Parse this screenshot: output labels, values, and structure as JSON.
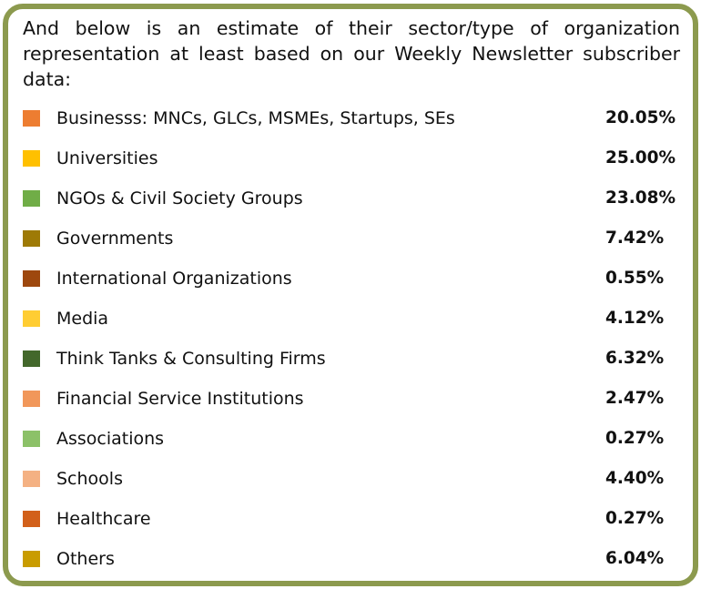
{
  "intro_text": "And below is an estimate of their sector/type of organization representation at least based on our Weekly Newsletter subscriber data:",
  "items": [
    {
      "label": "Businesss: MNCs, GLCs, MSMEs, Startups, SEs",
      "percent": "20.05%",
      "color": "#ed7d31"
    },
    {
      "label": "Universities",
      "percent": "25.00%",
      "color": "#ffc000"
    },
    {
      "label": "NGOs & Civil Society Groups",
      "percent": "23.08%",
      "color": "#70ad47"
    },
    {
      "label": "Governments",
      "percent": "7.42%",
      "color": "#9e7a06"
    },
    {
      "label": "International Organizations",
      "percent": "0.55%",
      "color": "#9e480e"
    },
    {
      "label": "Media",
      "percent": "4.12%",
      "color": "#ffcd33"
    },
    {
      "label": "Think Tanks & Consulting Firms",
      "percent": "6.32%",
      "color": "#43682b"
    },
    {
      "label": "Financial Service Institutions",
      "percent": "2.47%",
      "color": "#f1975a"
    },
    {
      "label": "Associations",
      "percent": "0.27%",
      "color": "#8cc168"
    },
    {
      "label": "Schools",
      "percent": "4.40%",
      "color": "#f4b183"
    },
    {
      "label": "Healthcare",
      "percent": "0.27%",
      "color": "#d2601a"
    },
    {
      "label": "Others",
      "percent": "6.04%",
      "color": "#c99c00"
    }
  ]
}
